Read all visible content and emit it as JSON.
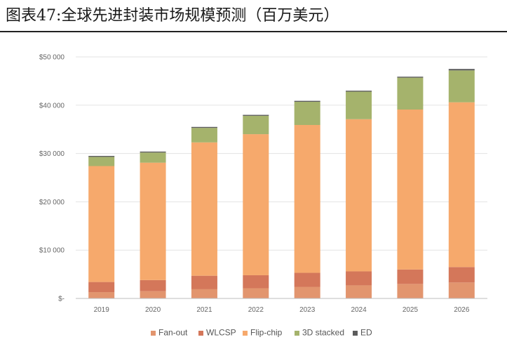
{
  "title": "图表47:全球先进封装市场规模预测（百万美元）",
  "chart_data": {
    "type": "bar",
    "stacked": true,
    "categories": [
      "2019",
      "2020",
      "2021",
      "2022",
      "2023",
      "2024",
      "2025",
      "2026"
    ],
    "ylim": [
      0,
      50000
    ],
    "yticks": [
      {
        "value": 0,
        "label": "$-"
      },
      {
        "value": 10000,
        "label": "$10 000"
      },
      {
        "value": 20000,
        "label": "$20 000"
      },
      {
        "value": 30000,
        "label": "$30 000"
      },
      {
        "value": 40000,
        "label": "$40 000"
      },
      {
        "value": 50000,
        "label": "$50 000"
      }
    ],
    "grid": true,
    "legend_position": "bottom",
    "series": [
      {
        "name": "Fan-out",
        "color": "#E2956E",
        "values": [
          1300,
          1500,
          1900,
          2100,
          2400,
          2700,
          3000,
          3300
        ]
      },
      {
        "name": "WLCSP",
        "color": "#D4775A",
        "values": [
          2100,
          2300,
          2800,
          2700,
          2900,
          2900,
          3000,
          3200
        ]
      },
      {
        "name": "Flip-chip",
        "color": "#F6A96C",
        "values": [
          24000,
          24300,
          27600,
          29200,
          30600,
          31500,
          33100,
          34100
        ]
      },
      {
        "name": "3D stacked",
        "color": "#A5B36C",
        "values": [
          1900,
          2100,
          3000,
          3800,
          4800,
          5700,
          6600,
          6600
        ]
      },
      {
        "name": "ED",
        "color": "#5C5C5C",
        "values": [
          200,
          200,
          200,
          200,
          200,
          200,
          200,
          300
        ]
      }
    ]
  }
}
